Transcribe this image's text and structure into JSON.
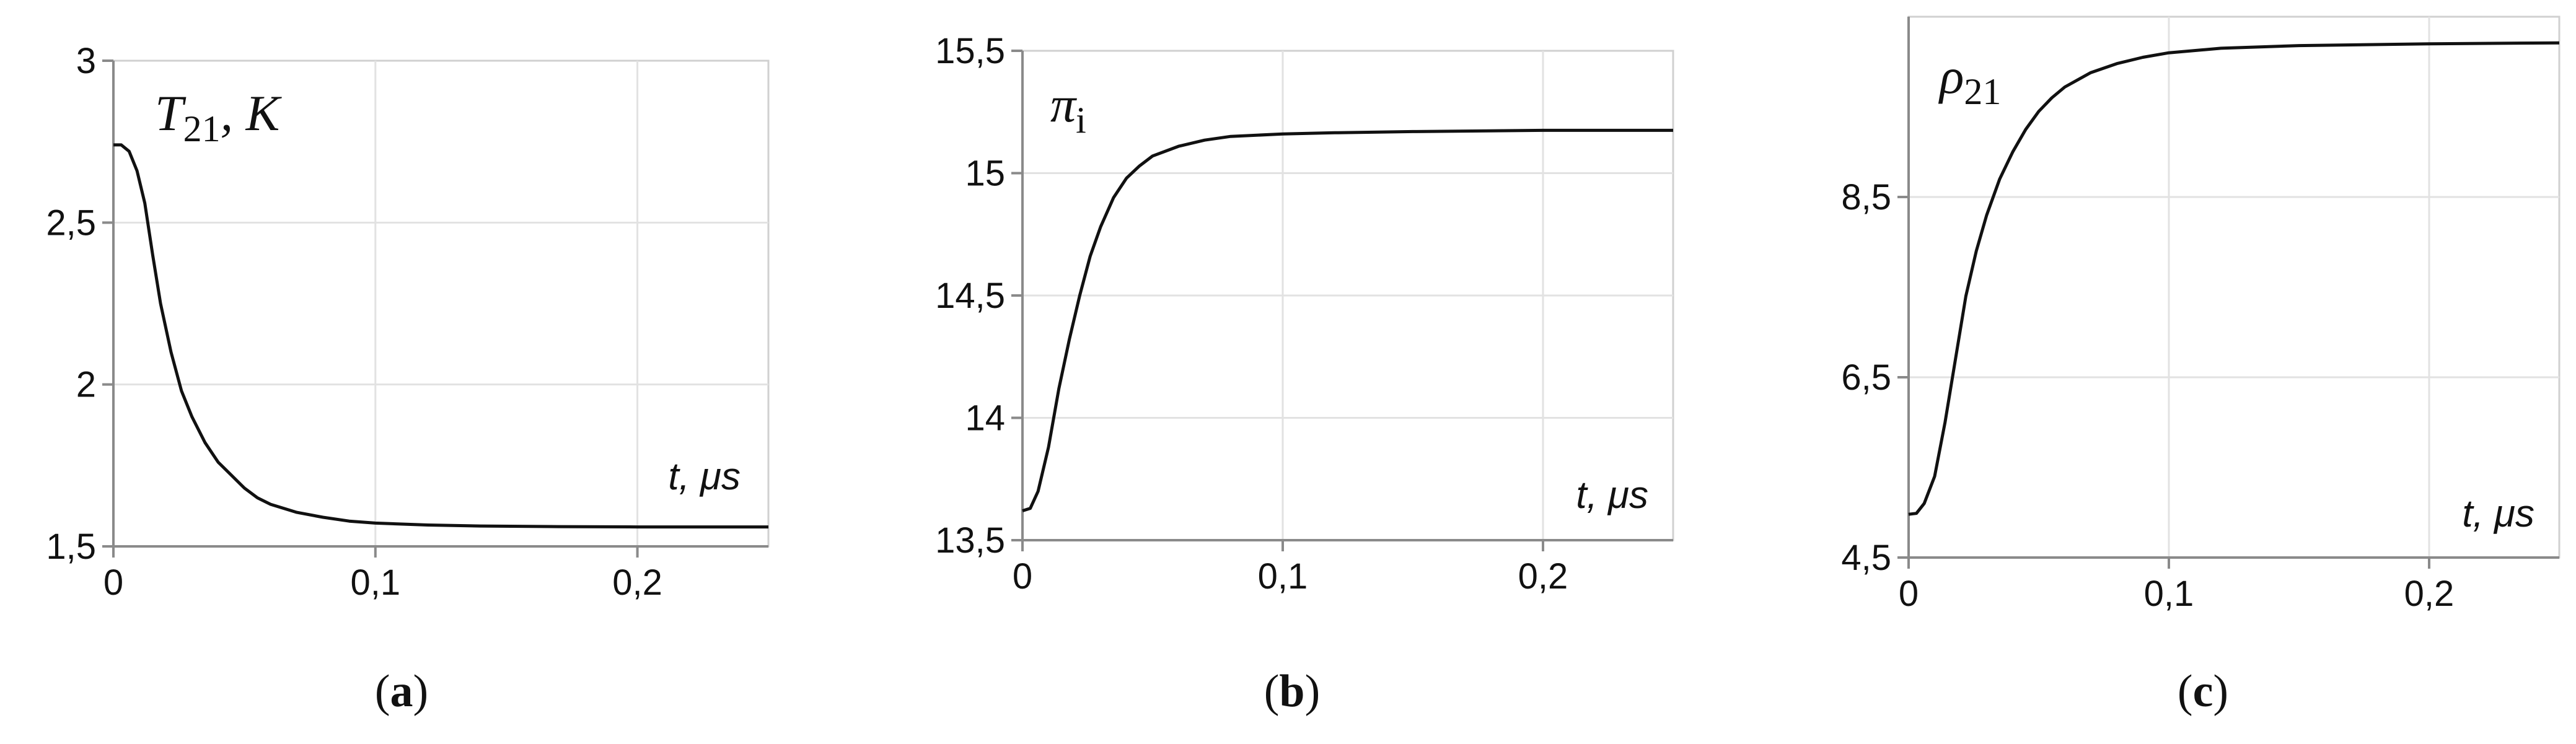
{
  "chart_data": [
    {
      "type": "line",
      "panel_label": "a",
      "curve_label": {
        "main": "T",
        "sub": "21",
        "tail": ", K"
      },
      "xlabel": "t, μs",
      "xlim": [
        0,
        0.25
      ],
      "ylim": [
        1.5,
        3
      ],
      "xticks": [
        {
          "v": 0,
          "label": "0"
        },
        {
          "v": 0.1,
          "label": "0,1"
        },
        {
          "v": 0.2,
          "label": "0,2"
        }
      ],
      "yticks": [
        {
          "v": 1.5,
          "label": "1,5"
        },
        {
          "v": 2,
          "label": "2"
        },
        {
          "v": 2.5,
          "label": "2,5"
        },
        {
          "v": 3,
          "label": "3"
        }
      ],
      "grid": true,
      "series": [
        {
          "x": [
            0,
            0.003,
            0.006,
            0.009,
            0.012,
            0.015,
            0.018,
            0.022,
            0.026,
            0.03,
            0.035,
            0.04,
            0.045,
            0.05,
            0.055,
            0.06,
            0.07,
            0.08,
            0.09,
            0.1,
            0.12,
            0.14,
            0.17,
            0.2,
            0.25
          ],
          "y": [
            2.74,
            2.74,
            2.72,
            2.66,
            2.56,
            2.4,
            2.25,
            2.1,
            1.98,
            1.9,
            1.82,
            1.76,
            1.72,
            1.68,
            1.65,
            1.63,
            1.605,
            1.59,
            1.578,
            1.572,
            1.566,
            1.563,
            1.561,
            1.56,
            1.56
          ]
        }
      ]
    },
    {
      "type": "line",
      "panel_label": "b",
      "curve_label": {
        "main": "π",
        "sub": "i",
        "tail": ""
      },
      "xlabel": "t, μs",
      "xlim": [
        0,
        0.25
      ],
      "ylim": [
        13.5,
        15.5
      ],
      "xticks": [
        {
          "v": 0,
          "label": "0"
        },
        {
          "v": 0.1,
          "label": "0,1"
        },
        {
          "v": 0.2,
          "label": "0,2"
        }
      ],
      "yticks": [
        {
          "v": 13.5,
          "label": "13,5"
        },
        {
          "v": 14,
          "label": "14"
        },
        {
          "v": 14.5,
          "label": "14,5"
        },
        {
          "v": 15,
          "label": "15"
        },
        {
          "v": 15.5,
          "label": "15,5"
        }
      ],
      "grid": true,
      "series": [
        {
          "x": [
            0,
            0.003,
            0.006,
            0.01,
            0.014,
            0.018,
            0.022,
            0.026,
            0.03,
            0.035,
            0.04,
            0.045,
            0.05,
            0.06,
            0.07,
            0.08,
            0.1,
            0.12,
            0.15,
            0.2,
            0.25
          ],
          "y": [
            13.62,
            13.63,
            13.7,
            13.88,
            14.12,
            14.32,
            14.5,
            14.66,
            14.78,
            14.9,
            14.98,
            15.03,
            15.07,
            15.11,
            15.135,
            15.15,
            15.16,
            15.165,
            15.17,
            15.175,
            15.175
          ]
        }
      ]
    },
    {
      "type": "line",
      "panel_label": "c",
      "curve_label": {
        "main": "ρ",
        "sub": "21",
        "tail": ""
      },
      "xlabel": "t, μs",
      "xlim": [
        0,
        0.25
      ],
      "ylim": [
        4.5,
        10.5
      ],
      "xticks": [
        {
          "v": 0,
          "label": "0"
        },
        {
          "v": 0.1,
          "label": "0,1"
        },
        {
          "v": 0.2,
          "label": "0,2"
        }
      ],
      "yticks": [
        {
          "v": 4.5,
          "label": "4,5"
        },
        {
          "v": 6.5,
          "label": "6,5"
        },
        {
          "v": 8.5,
          "label": "8,5"
        }
      ],
      "grid": true,
      "series": [
        {
          "x": [
            0,
            0.003,
            0.006,
            0.01,
            0.014,
            0.018,
            0.022,
            0.026,
            0.03,
            0.035,
            0.04,
            0.045,
            0.05,
            0.055,
            0.06,
            0.07,
            0.08,
            0.09,
            0.1,
            0.12,
            0.15,
            0.2,
            0.25
          ],
          "y": [
            4.98,
            4.99,
            5.1,
            5.4,
            6.0,
            6.7,
            7.4,
            7.9,
            8.3,
            8.7,
            9.0,
            9.25,
            9.45,
            9.6,
            9.72,
            9.88,
            9.98,
            10.05,
            10.1,
            10.15,
            10.18,
            10.2,
            10.21
          ]
        }
      ]
    }
  ]
}
